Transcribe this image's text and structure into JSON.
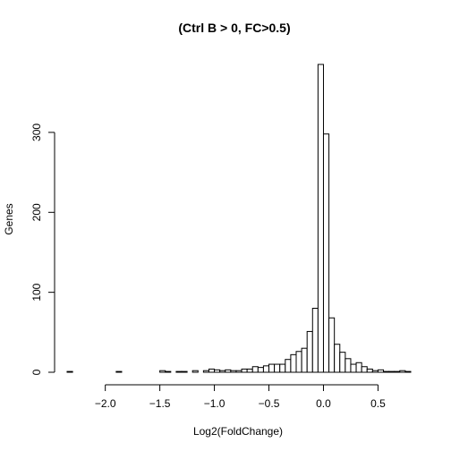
{
  "chart_data": {
    "type": "bar",
    "title": "(Ctrl B > 0, FC>0.5)",
    "xlabel": "Log2(FoldChange)",
    "ylabel": "Genes",
    "xlim": [
      -2.35,
      0.8
    ],
    "ylim": [
      0,
      385
    ],
    "x_ticks": [
      -2.0,
      -1.5,
      -1.0,
      -0.5,
      0.0,
      0.5
    ],
    "x_tick_labels": [
      "−2.0",
      "−1.5",
      "−1.0",
      "−0.5",
      "0.0",
      "0.5"
    ],
    "y_ticks": [
      0,
      100,
      200,
      300
    ],
    "y_tick_labels": [
      "0",
      "100",
      "200",
      "300"
    ],
    "bin_width": 0.05,
    "bin_starts": [
      -2.35,
      -2.3,
      -2.25,
      -2.2,
      -2.15,
      -2.1,
      -2.05,
      -2.0,
      -1.95,
      -1.9,
      -1.85,
      -1.8,
      -1.75,
      -1.7,
      -1.65,
      -1.6,
      -1.55,
      -1.5,
      -1.45,
      -1.4,
      -1.35,
      -1.3,
      -1.25,
      -1.2,
      -1.15,
      -1.1,
      -1.05,
      -1.0,
      -0.95,
      -0.9,
      -0.85,
      -0.8,
      -0.75,
      -0.7,
      -0.65,
      -0.6,
      -0.55,
      -0.5,
      -0.45,
      -0.4,
      -0.35,
      -0.3,
      -0.25,
      -0.2,
      -0.15,
      -0.1,
      -0.05,
      0.0,
      0.05,
      0.1,
      0.15,
      0.2,
      0.25,
      0.3,
      0.35,
      0.4,
      0.45,
      0.5,
      0.55,
      0.6,
      0.65,
      0.7,
      0.75
    ],
    "values": [
      1,
      0,
      0,
      0,
      0,
      0,
      0,
      0,
      0,
      1,
      0,
      0,
      0,
      0,
      0,
      0,
      0,
      2,
      1,
      0,
      1,
      1,
      0,
      2,
      0,
      2,
      4,
      3,
      2,
      3,
      2,
      2,
      4,
      4,
      7,
      6,
      8,
      10,
      10,
      10,
      16,
      22,
      26,
      30,
      51,
      80,
      385,
      298,
      68,
      35,
      25,
      17,
      10,
      12,
      7,
      4,
      2,
      3,
      1,
      1,
      1,
      2,
      1
    ]
  }
}
